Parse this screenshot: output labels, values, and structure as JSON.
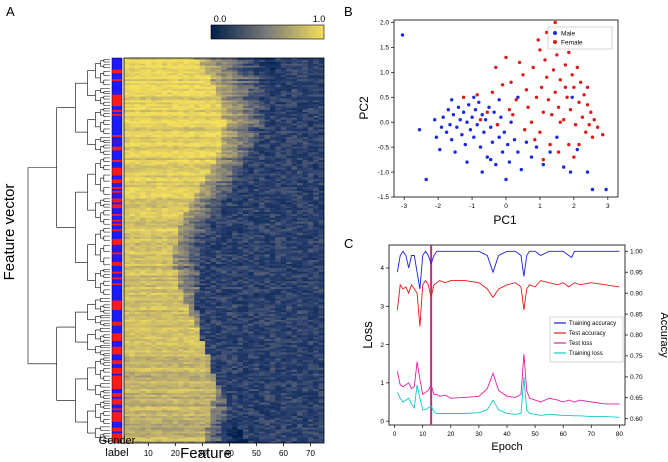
{
  "panel_a": {
    "letter": "A",
    "ylabel": "Feature vector",
    "xlabel": "Feature",
    "gender_label": "Gender\nlabel",
    "colorbar": {
      "min_label": "0.0",
      "max_label": "1.0",
      "low_color": "#00204c",
      "high_color": "#f5e05a"
    },
    "gender_colors": {
      "male": "#1a1aff",
      "female": "#ff1a1a"
    }
  },
  "panel_b": {
    "letter": "B",
    "xlabel": "PC1",
    "ylabel": "PC2",
    "legend": [
      {
        "name": "Male",
        "color": "#1a2ae0"
      },
      {
        "name": "Female",
        "color": "#e01a1a"
      }
    ]
  },
  "panel_c": {
    "letter": "C",
    "xlabel": "Epoch",
    "ylabel_left": "Loss",
    "ylabel_right": "Accuracy"
  },
  "chart_data": [
    {
      "type": "heatmap",
      "panel": "A",
      "title": "",
      "xlabel": "Feature",
      "ylabel": "Feature vector",
      "x_ticks": [
        10,
        20,
        30,
        40,
        50,
        60,
        70
      ],
      "xlim": [
        1,
        75
      ],
      "n_rows": 200,
      "colorbar_range": [
        0.0,
        1.0
      ],
      "row_annotation": "Gender label (blue = male, red = female)"
    },
    {
      "type": "scatter",
      "panel": "B",
      "xlabel": "PC1",
      "ylabel": "PC2",
      "xlim": [
        -3.3,
        3.3
      ],
      "ylim": [
        -1.5,
        2.05
      ],
      "x_ticks": [
        -3,
        -2,
        -1,
        0,
        1,
        2,
        3
      ],
      "y_ticks": [
        -1.5,
        -1.0,
        -0.5,
        0.0,
        0.5,
        1.0,
        1.5,
        2.0
      ],
      "legend_position": "top-right",
      "series": [
        {
          "name": "Male",
          "color": "#1a2ae0",
          "points": [
            [
              -3.05,
              1.75
            ],
            [
              -2.55,
              -0.15
            ],
            [
              -2.35,
              -1.15
            ],
            [
              -2.1,
              0.05
            ],
            [
              -2.05,
              -0.3
            ],
            [
              -1.95,
              -0.55
            ],
            [
              -1.9,
              -0.1
            ],
            [
              -1.85,
              0.1
            ],
            [
              -1.75,
              -0.2
            ],
            [
              -1.7,
              0.25
            ],
            [
              -1.65,
              -0.05
            ],
            [
              -1.6,
              -0.35
            ],
            [
              -1.55,
              0.15
            ],
            [
              -1.5,
              -0.6
            ],
            [
              -1.45,
              -0.1
            ],
            [
              -1.4,
              0.3
            ],
            [
              -1.35,
              0.05
            ],
            [
              -1.3,
              -0.25
            ],
            [
              -1.25,
              0.2
            ],
            [
              -1.2,
              -0.45
            ],
            [
              -1.15,
              0.0
            ],
            [
              -1.1,
              0.35
            ],
            [
              -1.05,
              -0.15
            ],
            [
              -1.0,
              0.1
            ],
            [
              -0.95,
              -0.3
            ],
            [
              -0.9,
              0.25
            ],
            [
              -0.85,
              -0.05
            ],
            [
              -0.8,
              0.4
            ],
            [
              -0.75,
              -0.5
            ],
            [
              -0.7,
              0.15
            ],
            [
              -0.65,
              -0.2
            ],
            [
              -0.6,
              0.05
            ],
            [
              -0.55,
              -0.7
            ],
            [
              -0.5,
              0.3
            ],
            [
              -0.45,
              -0.1
            ],
            [
              -0.4,
              -0.4
            ],
            [
              -0.35,
              0.2
            ],
            [
              -0.3,
              -0.85
            ],
            [
              -0.25,
              -0.05
            ],
            [
              -0.2,
              -0.3
            ],
            [
              -0.15,
              0.1
            ],
            [
              -0.1,
              -0.6
            ],
            [
              -0.05,
              -0.2
            ],
            [
              0.0,
              -1.15
            ],
            [
              0.05,
              -0.45
            ],
            [
              0.1,
              -0.8
            ],
            [
              0.15,
              0.0
            ],
            [
              0.25,
              -0.35
            ],
            [
              0.35,
              -0.6
            ],
            [
              0.45,
              -0.95
            ],
            [
              0.6,
              -0.4
            ],
            [
              0.75,
              -0.7
            ],
            [
              0.9,
              -0.5
            ],
            [
              1.1,
              -0.85
            ],
            [
              1.3,
              -0.6
            ],
            [
              1.5,
              -0.3
            ],
            [
              1.7,
              -0.9
            ],
            [
              1.9,
              -1.0
            ],
            [
              2.1,
              -0.55
            ],
            [
              2.4,
              -1.0
            ],
            [
              2.55,
              -1.35
            ],
            [
              2.95,
              -1.35
            ],
            [
              -1.15,
              -0.8
            ],
            [
              -0.7,
              -1.0
            ],
            [
              -0.45,
              -0.75
            ],
            [
              -1.6,
              0.45
            ],
            [
              -0.95,
              0.5
            ],
            [
              -0.2,
              0.45
            ],
            [
              0.35,
              0.5
            ],
            [
              1.95,
              0.5
            ]
          ]
        },
        {
          "name": "Female",
          "color": "#e01a1a",
          "points": [
            [
              -1.25,
              0.5
            ],
            [
              -0.85,
              0.55
            ],
            [
              -0.4,
              0.6
            ],
            [
              -0.1,
              0.75
            ],
            [
              0.15,
              0.8
            ],
            [
              0.3,
              0.45
            ],
            [
              0.5,
              0.95
            ],
            [
              0.65,
              0.3
            ],
            [
              0.8,
              1.1
            ],
            [
              0.9,
              0.5
            ],
            [
              1.0,
              1.45
            ],
            [
              1.05,
              0.7
            ],
            [
              1.1,
              0.2
            ],
            [
              1.15,
              1.25
            ],
            [
              1.2,
              0.9
            ],
            [
              1.25,
              0.45
            ],
            [
              1.3,
              1.7
            ],
            [
              1.35,
              0.15
            ],
            [
              1.4,
              1.05
            ],
            [
              1.45,
              0.6
            ],
            [
              1.5,
              1.35
            ],
            [
              1.55,
              0.3
            ],
            [
              1.6,
              0.85
            ],
            [
              1.65,
              1.55
            ],
            [
              1.7,
              0.05
            ],
            [
              1.75,
              1.15
            ],
            [
              1.8,
              0.5
            ],
            [
              1.85,
              1.4
            ],
            [
              1.9,
              0.25
            ],
            [
              1.95,
              0.95
            ],
            [
              2.0,
              0.7
            ],
            [
              2.05,
              -0.05
            ],
            [
              2.1,
              1.1
            ],
            [
              2.15,
              0.4
            ],
            [
              2.2,
              0.8
            ],
            [
              2.25,
              0.1
            ],
            [
              2.3,
              0.55
            ],
            [
              2.35,
              -0.2
            ],
            [
              2.4,
              0.35
            ],
            [
              2.45,
              -0.05
            ],
            [
              2.5,
              0.2
            ],
            [
              2.55,
              -0.3
            ],
            [
              2.6,
              0.05
            ],
            [
              2.7,
              -0.1
            ],
            [
              2.85,
              -0.25
            ],
            [
              -0.3,
              1.1
            ],
            [
              0.0,
              1.3
            ],
            [
              0.4,
              1.2
            ],
            [
              0.75,
              0.0
            ],
            [
              0.55,
              -0.15
            ],
            [
              1.0,
              -0.2
            ],
            [
              1.3,
              -0.45
            ],
            [
              1.55,
              -0.6
            ],
            [
              1.85,
              -0.45
            ],
            [
              2.0,
              -0.7
            ],
            [
              -0.55,
              0.2
            ],
            [
              -0.25,
              -0.05
            ],
            [
              0.2,
              0.15
            ],
            [
              0.85,
              -0.35
            ],
            [
              1.6,
              0.0
            ],
            [
              2.15,
              -0.45
            ],
            [
              1.2,
              1.8
            ],
            [
              1.45,
              2.0
            ],
            [
              0.95,
              1.65
            ],
            [
              0.1,
              0.25
            ],
            [
              -0.75,
              0.05
            ],
            [
              2.4,
              0.7
            ],
            [
              1.75,
              0.7
            ],
            [
              0.6,
              0.65
            ],
            [
              1.1,
              -0.75
            ]
          ]
        }
      ]
    },
    {
      "type": "line",
      "panel": "C",
      "xlabel": "Epoch",
      "ylabel": "Loss",
      "y2label": "Accuracy",
      "xlim": [
        -2,
        82
      ],
      "x_ticks": [
        0,
        10,
        20,
        30,
        40,
        50,
        60,
        70,
        80
      ],
      "ylim_left": [
        -0.1,
        4.6
      ],
      "y_ticks_left": [
        0,
        1,
        2,
        3,
        4
      ],
      "ylim_right": [
        0.585,
        1.015
      ],
      "y_ticks_right": [
        0.6,
        0.65,
        0.7,
        0.75,
        0.8,
        0.85,
        0.9,
        0.95,
        1.0
      ],
      "vertical_marker": {
        "epoch": 13,
        "color": "#b8327a"
      },
      "legend_position": "center-right",
      "series": [
        {
          "name": "Training accuracy",
          "axis": "right",
          "color": "#1d1de0",
          "x": [
            1,
            2,
            3,
            4,
            5,
            6,
            7,
            8,
            9,
            10,
            11,
            12,
            13,
            14,
            15,
            16,
            18,
            20,
            25,
            30,
            33,
            35,
            37,
            40,
            43,
            45,
            46,
            47,
            48,
            50,
            52,
            55,
            58,
            60,
            62,
            63,
            64,
            66,
            70,
            75,
            80
          ],
          "values": [
            0.95,
            0.99,
            1.0,
            0.99,
            0.96,
            0.99,
            0.99,
            0.95,
            0.91,
            0.99,
            1.0,
            0.99,
            0.97,
            0.99,
            1.0,
            1.0,
            1.0,
            1.0,
            1.0,
            1.0,
            0.99,
            0.95,
            0.99,
            1.0,
            1.0,
            0.99,
            0.94,
            0.99,
            1.0,
            1.0,
            0.99,
            1.0,
            1.0,
            1.0,
            0.99,
            0.985,
            1.0,
            1.0,
            1.0,
            1.0,
            1.0
          ]
        },
        {
          "name": "Test accuracy",
          "axis": "right",
          "color": "#e01a1a",
          "x": [
            1,
            2,
            3,
            4,
            5,
            6,
            7,
            8,
            9,
            10,
            11,
            12,
            13,
            14,
            15,
            16,
            18,
            20,
            25,
            30,
            33,
            35,
            37,
            40,
            43,
            45,
            46,
            47,
            48,
            50,
            52,
            55,
            58,
            60,
            62,
            64,
            66,
            70,
            75,
            80
          ],
          "values": [
            0.86,
            0.92,
            0.91,
            0.915,
            0.9,
            0.92,
            0.91,
            0.9,
            0.82,
            0.92,
            0.93,
            0.92,
            0.89,
            0.92,
            0.925,
            0.93,
            0.925,
            0.93,
            0.93,
            0.925,
            0.91,
            0.89,
            0.91,
            0.92,
            0.925,
            0.915,
            0.86,
            0.91,
            0.92,
            0.915,
            0.93,
            0.925,
            0.92,
            0.925,
            0.915,
            0.925,
            0.92,
            0.925,
            0.92,
            0.915
          ]
        },
        {
          "name": "Test loss",
          "axis": "left",
          "color": "#e020a8",
          "x": [
            1,
            2,
            3,
            4,
            5,
            6,
            7,
            8,
            9,
            10,
            11,
            12,
            13,
            14,
            15,
            16,
            18,
            20,
            25,
            30,
            33,
            35,
            37,
            40,
            43,
            45,
            46,
            47,
            48,
            50,
            52,
            55,
            58,
            60,
            62,
            64,
            66,
            70,
            75,
            80
          ],
          "values": [
            1.3,
            0.95,
            0.9,
            0.95,
            1.0,
            0.85,
            0.9,
            1.55,
            1.1,
            0.7,
            0.75,
            0.8,
            0.95,
            0.7,
            0.7,
            0.65,
            0.68,
            0.6,
            0.62,
            0.65,
            0.85,
            1.25,
            0.8,
            0.65,
            0.62,
            0.7,
            1.75,
            0.8,
            0.6,
            0.55,
            0.5,
            0.6,
            0.55,
            0.5,
            0.55,
            0.5,
            0.55,
            0.5,
            0.45,
            0.45
          ]
        },
        {
          "name": "Training loss",
          "axis": "left",
          "color": "#10c8c8",
          "x": [
            1,
            2,
            3,
            4,
            5,
            6,
            7,
            8,
            9,
            10,
            11,
            12,
            13,
            14,
            15,
            16,
            18,
            20,
            25,
            30,
            33,
            35,
            37,
            40,
            43,
            45,
            46,
            47,
            48,
            50,
            52,
            55,
            58,
            60,
            62,
            64,
            66,
            70,
            75,
            80
          ],
          "values": [
            0.75,
            0.6,
            0.5,
            0.55,
            0.6,
            0.45,
            0.35,
            0.95,
            0.6,
            0.3,
            0.3,
            0.35,
            0.4,
            0.25,
            0.2,
            0.2,
            0.2,
            0.2,
            0.2,
            0.22,
            0.3,
            0.55,
            0.3,
            0.2,
            0.18,
            0.2,
            1.15,
            0.3,
            0.2,
            0.18,
            0.15,
            0.18,
            0.16,
            0.15,
            0.15,
            0.14,
            0.14,
            0.12,
            0.12,
            0.1
          ]
        }
      ]
    }
  ]
}
